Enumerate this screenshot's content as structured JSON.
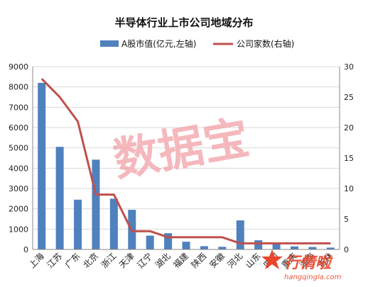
{
  "chart_data": {
    "type": "bar",
    "title": "半导体行业上市公司地域分布",
    "categories": [
      "上海",
      "江苏",
      "广东",
      "北京",
      "浙江",
      "天津",
      "辽宁",
      "湖北",
      "福建",
      "陕西",
      "安徽",
      "河北",
      "山东",
      "四川",
      "重庆",
      "湖南",
      "吉林"
    ],
    "series": [
      {
        "name": "A股市值(亿元,左轴)",
        "type": "bar",
        "axis": "left",
        "values": [
          8200,
          5050,
          2450,
          4420,
          2500,
          1950,
          680,
          800,
          380,
          160,
          130,
          1430,
          450,
          300,
          150,
          120,
          90
        ]
      },
      {
        "name": "公司家数(右轴)",
        "type": "line",
        "axis": "right",
        "values": [
          28,
          25,
          21,
          9,
          9,
          3,
          3,
          2,
          2,
          2,
          2,
          1,
          1,
          1,
          1,
          1,
          1
        ]
      }
    ],
    "ylim_left": [
      0,
      9000
    ],
    "ylim_right": [
      0,
      30
    ],
    "yticks_left": [
      0,
      1000,
      2000,
      3000,
      4000,
      5000,
      6000,
      7000,
      8000,
      9000
    ],
    "yticks_right": [
      0,
      5,
      10,
      15,
      20,
      25,
      30
    ],
    "grid": true,
    "legend": "top",
    "colors": {
      "bar": "#4f81bd",
      "line": "#c0504d",
      "grid": "#d9d9d9"
    }
  },
  "watermark": {
    "text": "数据宝",
    "color": "#f2a1a8"
  },
  "brand": {
    "name": "行情啦",
    "url": "hangqingla.com"
  }
}
